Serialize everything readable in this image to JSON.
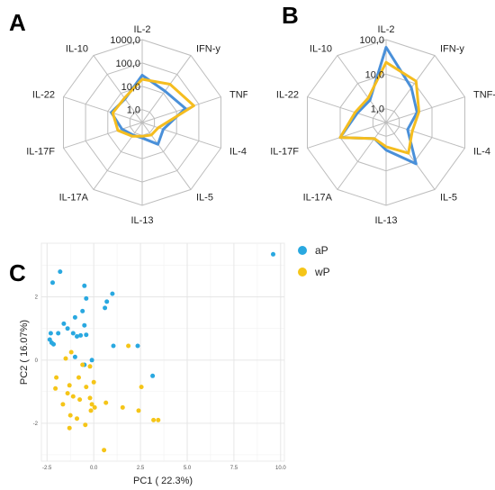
{
  "panels": {
    "a_letter": "A",
    "b_letter": "B",
    "c_letter": "C"
  },
  "colors": {
    "aP": "#4a90d9",
    "wP": "#f5bd1f",
    "aP_point": "#29a8e0",
    "wP_point": "#f5c518",
    "grid": "#bdbdbd"
  },
  "chart_data": [
    {
      "type": "radar",
      "panel": "A",
      "axes": [
        "IL-2",
        "IFN-y",
        "TNF-a",
        "IL-4",
        "IL-5",
        "IL-13",
        "IL-17A",
        "IL-17F",
        "IL-22",
        "IL-10"
      ],
      "scale": "log",
      "rings": [
        1,
        10,
        100,
        1000
      ],
      "ring_labels": [
        "1,0",
        "10,0",
        "100,0",
        "1000,0"
      ],
      "series": [
        {
          "name": "aP",
          "values": [
            30,
            13,
            25,
            2.5,
            4,
            1.3,
            1.3,
            2.3,
            7,
            5
          ]
        },
        {
          "name": "wP",
          "values": [
            20,
            30,
            60,
            1.5,
            1.3,
            1.1,
            1.5,
            3.5,
            6,
            5.5
          ]
        }
      ]
    },
    {
      "type": "radar",
      "panel": "B",
      "axes": [
        "IL-2",
        "IFN-y",
        "TNF-a",
        "IL-4",
        "IL-5",
        "IL-13",
        "IL-17A",
        "IL-17F",
        "IL-22",
        "IL-10"
      ],
      "scale": "log",
      "rings": [
        1,
        10,
        100
      ],
      "ring_labels": [
        "1,0",
        "10,0",
        "100,0"
      ],
      "series": [
        {
          "name": "aP",
          "values": [
            60,
            7,
            3.5,
            1.8,
            12,
            2.5,
            1.5,
            10,
            3,
            2.5
          ]
        },
        {
          "name": "wP",
          "values": [
            22,
            12,
            4,
            2.5,
            5,
            2,
            1.5,
            10,
            3.5,
            3
          ]
        }
      ]
    },
    {
      "type": "scatter",
      "panel": "C",
      "xlabel": "PC1 ( 22.3%)",
      "ylabel": "PC2 ( 16.07%)",
      "xlim": [
        -2.8,
        10.2
      ],
      "ylim": [
        -3.2,
        3.7
      ],
      "xticks": [
        -2.5,
        0,
        2.5,
        5,
        7.5,
        10
      ],
      "xtick_labels": [
        "-2.5",
        "0.0",
        "2.5",
        "5.0",
        "7.5",
        "10.0"
      ],
      "yticks": [
        -2,
        0,
        2
      ],
      "ytick_labels": [
        "-2",
        "0",
        "2"
      ],
      "grid": true,
      "legend": "right",
      "series": [
        {
          "name": "aP",
          "points": [
            [
              9.6,
              3.35
            ],
            [
              -1.8,
              2.8
            ],
            [
              -2.2,
              2.45
            ],
            [
              -0.5,
              2.35
            ],
            [
              1,
              2.1
            ],
            [
              -0.4,
              1.95
            ],
            [
              0.7,
              1.85
            ],
            [
              0.6,
              1.65
            ],
            [
              -0.6,
              1.55
            ],
            [
              -1,
              1.35
            ],
            [
              -1.6,
              1.15
            ],
            [
              -0.5,
              1.1
            ],
            [
              -1.4,
              1.0
            ],
            [
              -2.3,
              0.85
            ],
            [
              -1.9,
              0.85
            ],
            [
              -1.1,
              0.85
            ],
            [
              -0.9,
              0.75
            ],
            [
              -0.7,
              0.78
            ],
            [
              -0.4,
              0.8
            ],
            [
              -2.35,
              0.65
            ],
            [
              -2.25,
              0.55
            ],
            [
              -2.15,
              0.5
            ],
            [
              1.05,
              0.45
            ],
            [
              2.35,
              0.45
            ],
            [
              -1.0,
              0.1
            ],
            [
              -0.1,
              0.0
            ],
            [
              -0.5,
              -0.15
            ],
            [
              3.15,
              -0.5
            ]
          ]
        },
        {
          "name": "wP",
          "points": [
            [
              1.85,
              0.45
            ],
            [
              -1.2,
              0.25
            ],
            [
              -1.5,
              0.05
            ],
            [
              -0.6,
              -0.15
            ],
            [
              -0.2,
              -0.2
            ],
            [
              -2.0,
              -0.55
            ],
            [
              -0.8,
              -0.55
            ],
            [
              -1.3,
              -0.8
            ],
            [
              0.0,
              -0.7
            ],
            [
              -0.4,
              -0.85
            ],
            [
              -2.05,
              -0.9
            ],
            [
              2.55,
              -0.85
            ],
            [
              -1.4,
              -1.05
            ],
            [
              -1.1,
              -1.15
            ],
            [
              -0.2,
              -1.2
            ],
            [
              -0.75,
              -1.25
            ],
            [
              -0.1,
              -1.4
            ],
            [
              -1.65,
              -1.4
            ],
            [
              0.05,
              -1.5
            ],
            [
              0.65,
              -1.35
            ],
            [
              -0.15,
              -1.6
            ],
            [
              2.4,
              -1.6
            ],
            [
              -0.9,
              -1.85
            ],
            [
              -1.25,
              -1.75
            ],
            [
              1.55,
              -1.5
            ],
            [
              3.2,
              -1.9
            ],
            [
              3.45,
              -1.9
            ],
            [
              -0.45,
              -2.05
            ],
            [
              -1.3,
              -2.15
            ],
            [
              0.55,
              -2.85
            ]
          ]
        }
      ]
    }
  ]
}
